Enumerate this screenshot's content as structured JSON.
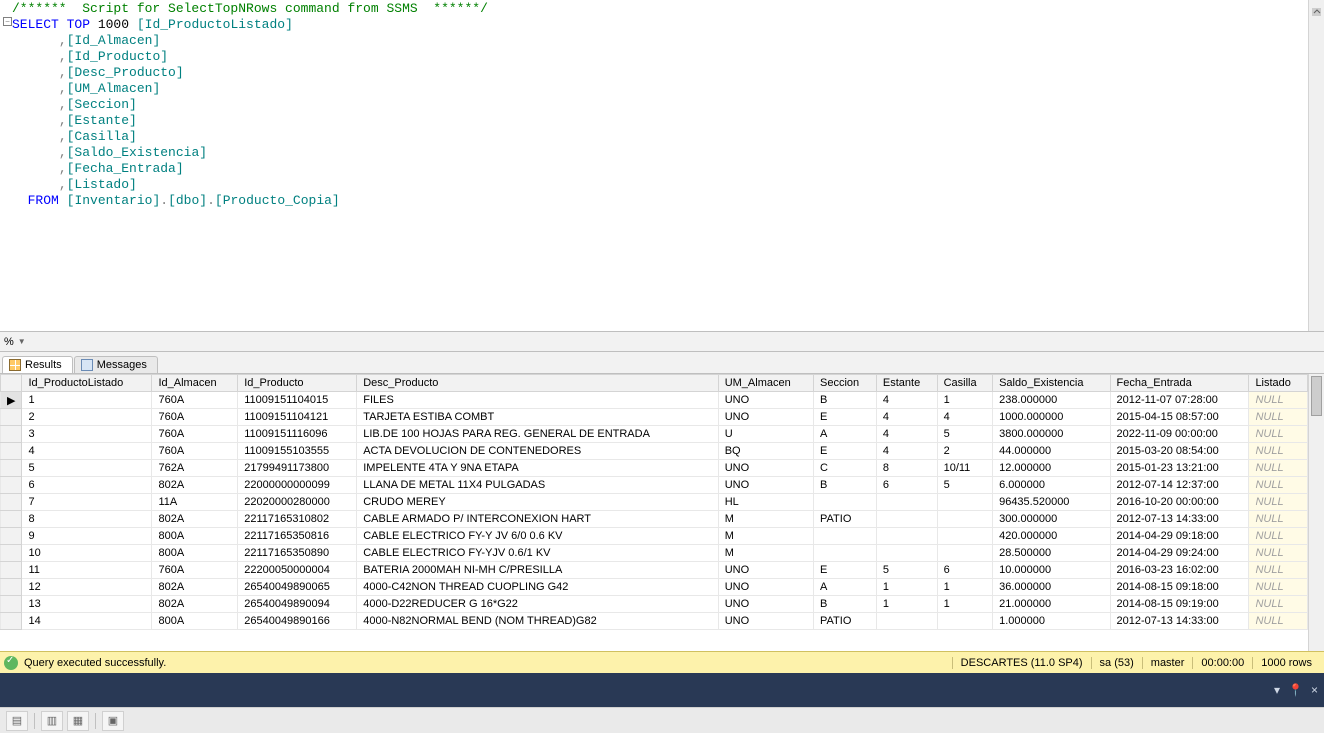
{
  "editor": {
    "lines": [
      {
        "segments": [
          {
            "t": "/******  Script for SelectTopNRows command from SSMS  ******/",
            "c": "c-comment"
          }
        ]
      },
      {
        "segments": [
          {
            "t": "SELECT",
            "c": "c-keyword"
          },
          {
            "t": " ",
            "c": ""
          },
          {
            "t": "TOP",
            "c": "c-keyword"
          },
          {
            "t": " 1000 ",
            "c": "c-number"
          },
          {
            "t": "[Id_ProductoListado]",
            "c": "c-teal"
          }
        ]
      },
      {
        "segments": [
          {
            "t": "      ",
            "c": ""
          },
          {
            "t": ",",
            "c": "c-gray"
          },
          {
            "t": "[Id_Almacen]",
            "c": "c-teal"
          }
        ]
      },
      {
        "segments": [
          {
            "t": "      ",
            "c": ""
          },
          {
            "t": ",",
            "c": "c-gray"
          },
          {
            "t": "[Id_Producto]",
            "c": "c-teal"
          }
        ]
      },
      {
        "segments": [
          {
            "t": "      ",
            "c": ""
          },
          {
            "t": ",",
            "c": "c-gray"
          },
          {
            "t": "[Desc_Producto]",
            "c": "c-teal"
          }
        ]
      },
      {
        "segments": [
          {
            "t": "      ",
            "c": ""
          },
          {
            "t": ",",
            "c": "c-gray"
          },
          {
            "t": "[UM_Almacen]",
            "c": "c-teal"
          }
        ]
      },
      {
        "segments": [
          {
            "t": "      ",
            "c": ""
          },
          {
            "t": ",",
            "c": "c-gray"
          },
          {
            "t": "[Seccion]",
            "c": "c-teal"
          }
        ]
      },
      {
        "segments": [
          {
            "t": "      ",
            "c": ""
          },
          {
            "t": ",",
            "c": "c-gray"
          },
          {
            "t": "[Estante]",
            "c": "c-teal"
          }
        ]
      },
      {
        "segments": [
          {
            "t": "      ",
            "c": ""
          },
          {
            "t": ",",
            "c": "c-gray"
          },
          {
            "t": "[Casilla]",
            "c": "c-teal"
          }
        ]
      },
      {
        "segments": [
          {
            "t": "      ",
            "c": ""
          },
          {
            "t": ",",
            "c": "c-gray"
          },
          {
            "t": "[Saldo_Existencia]",
            "c": "c-teal"
          }
        ]
      },
      {
        "segments": [
          {
            "t": "      ",
            "c": ""
          },
          {
            "t": ",",
            "c": "c-gray"
          },
          {
            "t": "[Fecha_Entrada]",
            "c": "c-teal"
          }
        ]
      },
      {
        "segments": [
          {
            "t": "      ",
            "c": ""
          },
          {
            "t": ",",
            "c": "c-gray"
          },
          {
            "t": "[Listado]",
            "c": "c-teal"
          }
        ]
      },
      {
        "segments": [
          {
            "t": "  ",
            "c": ""
          },
          {
            "t": "FROM",
            "c": "c-keyword"
          },
          {
            "t": " ",
            "c": ""
          },
          {
            "t": "[Inventario]",
            "c": "c-teal"
          },
          {
            "t": ".",
            "c": "c-gray"
          },
          {
            "t": "[dbo]",
            "c": "c-teal"
          },
          {
            "t": ".",
            "c": "c-gray"
          },
          {
            "t": "[Producto_Copia]",
            "c": "c-teal"
          }
        ]
      }
    ]
  },
  "pct_label": "%",
  "tabs": {
    "results": "Results",
    "messages": "Messages"
  },
  "grid": {
    "columns": [
      "Id_ProductoListado",
      "Id_Almacen",
      "Id_Producto",
      "Desc_Producto",
      "UM_Almacen",
      "Seccion",
      "Estante",
      "Casilla",
      "Saldo_Existencia",
      "Fecha_Entrada",
      "Listado"
    ],
    "rows": [
      [
        "1",
        "760A",
        "11009151104015",
        "FILES",
        "UNO",
        "B",
        "4",
        "1",
        "238.000000",
        "2012-11-07 07:28:00",
        "NULL"
      ],
      [
        "2",
        "760A",
        "11009151104121",
        "TARJETA ESTIBA COMBT",
        "UNO",
        "E",
        "4",
        "4",
        "1000.000000",
        "2015-04-15 08:57:00",
        "NULL"
      ],
      [
        "3",
        "760A",
        "11009151116096",
        "LIB.DE 100 HOJAS PARA REG. GENERAL DE ENTRADA",
        "U",
        "A",
        "4",
        "5",
        "3800.000000",
        "2022-11-09 00:00:00",
        "NULL"
      ],
      [
        "4",
        "760A",
        "11009155103555",
        "ACTA DEVOLUCION DE CONTENEDORES",
        "BQ",
        "E",
        "4",
        "2",
        "44.000000",
        "2015-03-20 08:54:00",
        "NULL"
      ],
      [
        "5",
        "762A",
        "21799491173800",
        "IMPELENTE 4TA Y 9NA ETAPA",
        "UNO",
        "C",
        "8",
        "10/11",
        "12.000000",
        "2015-01-23 13:21:00",
        "NULL"
      ],
      [
        "6",
        "802A",
        "22000000000099",
        "LLANA DE METAL 11X4 PULGADAS",
        "UNO",
        "B",
        "6",
        "5",
        "6.000000",
        "2012-07-14 12:37:00",
        "NULL"
      ],
      [
        "7",
        "11A",
        "22020000280000",
        "CRUDO MEREY",
        "HL",
        "",
        "",
        "",
        "96435.520000",
        "2016-10-20 00:00:00",
        "NULL"
      ],
      [
        "8",
        "802A",
        "22117165310802",
        "CABLE ARMADO P/ INTERCONEXION HART",
        "M",
        "PATIO",
        "",
        "",
        "300.000000",
        "2012-07-13 14:33:00",
        "NULL"
      ],
      [
        "9",
        "800A",
        "22117165350816",
        "CABLE ELECTRICO FY-Y JV 6/0 0.6 KV",
        "M",
        "",
        "",
        "",
        "420.000000",
        "2014-04-29 09:18:00",
        "NULL"
      ],
      [
        "10",
        "800A",
        "22117165350890",
        "CABLE ELECTRICO FY-YJV 0.6/1 KV",
        "M",
        "",
        "",
        "",
        "28.500000",
        "2014-04-29 09:24:00",
        "NULL"
      ],
      [
        "11",
        "760A",
        "22200050000004",
        "BATERIA 2000MAH NI-MH C/PRESILLA",
        "UNO",
        "E",
        "5",
        "6",
        "10.000000",
        "2016-03-23 16:02:00",
        "NULL"
      ],
      [
        "12",
        "802A",
        "26540049890065",
        "4000-C42NON THREAD CUOPLING G42",
        "UNO",
        "A",
        "1",
        "1",
        "36.000000",
        "2014-08-15 09:18:00",
        "NULL"
      ],
      [
        "13",
        "802A",
        "26540049890094",
        "4000-D22REDUCER G 16*G22",
        "UNO",
        "B",
        "1",
        "1",
        "21.000000",
        "2014-08-15 09:19:00",
        "NULL"
      ],
      [
        "14",
        "800A",
        "26540049890166",
        "4000-N82NORMAL BEND (NOM THREAD)G82",
        "UNO",
        "PATIO",
        "",
        "",
        "1.000000",
        "2012-07-13 14:33:00",
        "NULL"
      ]
    ],
    "null_columns": [
      10
    ]
  },
  "status": {
    "message": "Query executed successfully.",
    "server": "DESCARTES (11.0 SP4)",
    "user": "sa (53)",
    "db": "master",
    "elapsed": "00:00:00",
    "rows": "1000 rows"
  }
}
